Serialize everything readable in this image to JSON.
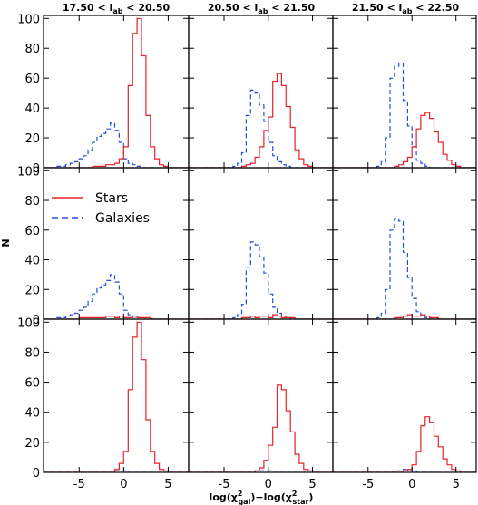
{
  "chart_data": {
    "type": "histogram-grid",
    "ylabel": "N",
    "xlabel_parts": [
      "log(χ",
      "2",
      "gal",
      ")−log(χ",
      "2",
      "star",
      ")"
    ],
    "xlim": [
      -9,
      7.3
    ],
    "ylim": [
      0,
      102
    ],
    "x_ticks": [
      -5,
      0,
      5
    ],
    "y_ticks": [
      0,
      20,
      40,
      60,
      80,
      100
    ],
    "bin_edges": [
      -9.0,
      -8.5,
      -8.0,
      -7.5,
      -7.0,
      -6.5,
      -6.0,
      -5.5,
      -5.0,
      -4.5,
      -4.0,
      -3.5,
      -3.0,
      -2.5,
      -2.0,
      -1.5,
      -1.0,
      -0.5,
      0.0,
      0.5,
      1.0,
      1.5,
      2.0,
      2.5,
      3.0,
      3.5,
      4.0,
      4.5,
      5.0,
      5.5,
      6.0,
      6.5,
      7.0,
      7.5
    ],
    "column_titles": [
      {
        "pre": "17.50 < i",
        "sub": "ab",
        "post": " < 20.50"
      },
      {
        "pre": "20.50 < i",
        "sub": "ab",
        "post": " < 21.50"
      },
      {
        "pre": "21.50 < i",
        "sub": "ab",
        "post": " < 22.50"
      }
    ],
    "legend": {
      "stars": "Stars",
      "galaxies": "Galaxies"
    },
    "colors": {
      "stars": "#e8202a",
      "galaxies": "#2450d8",
      "axis": "#000000"
    },
    "panels": [
      [
        {
          "stars": [
            0,
            0,
            0,
            0,
            0,
            0,
            0,
            0,
            0,
            0,
            0,
            1,
            1,
            1,
            2,
            2,
            3,
            6,
            14,
            55,
            90,
            100,
            75,
            35,
            14,
            6,
            2,
            1,
            0,
            0,
            0,
            0,
            0
          ],
          "galaxies": [
            0,
            0,
            0,
            1,
            1,
            2,
            3,
            4,
            6,
            8,
            12,
            17,
            21,
            23,
            26,
            30,
            25,
            17,
            6,
            3,
            2,
            1,
            0,
            0,
            0,
            0,
            0,
            0,
            0,
            0,
            0,
            0,
            0
          ]
        },
        {
          "stars": [
            0,
            0,
            0,
            0,
            0,
            0,
            0,
            0,
            0,
            0,
            0,
            0,
            1,
            2,
            3,
            7,
            14,
            25,
            34,
            58,
            63,
            55,
            41,
            27,
            12,
            6,
            2,
            1,
            0,
            0,
            0,
            0,
            0
          ],
          "galaxies": [
            0,
            0,
            0,
            0,
            0,
            0,
            0,
            0,
            0,
            0,
            1,
            3,
            10,
            35,
            52,
            50,
            42,
            31,
            17,
            8,
            4,
            2,
            1,
            0,
            0,
            0,
            0,
            0,
            0,
            0,
            0,
            0,
            0
          ]
        },
        {
          "stars": [
            0,
            0,
            0,
            0,
            0,
            0,
            0,
            0,
            0,
            0,
            0,
            0,
            0,
            0,
            1,
            2,
            4,
            7,
            14,
            26,
            35,
            37,
            33,
            24,
            17,
            9,
            5,
            2,
            1,
            0,
            0,
            0,
            0
          ],
          "galaxies": [
            0,
            0,
            0,
            0,
            0,
            0,
            0,
            0,
            0,
            0,
            1,
            4,
            20,
            60,
            68,
            70,
            45,
            28,
            14,
            5,
            3,
            1,
            0,
            0,
            0,
            0,
            0,
            0,
            0,
            0,
            0,
            0,
            0
          ]
        }
      ],
      [
        {
          "stars": [
            0,
            0,
            0,
            0,
            0,
            0,
            0,
            0,
            1,
            1,
            1,
            1,
            1,
            1,
            2,
            2,
            1,
            2,
            1,
            1,
            2,
            1,
            1,
            1,
            0,
            0,
            0,
            0,
            0,
            0,
            0,
            0,
            0
          ],
          "galaxies": [
            0,
            0,
            0,
            1,
            1,
            2,
            3,
            4,
            6,
            8,
            12,
            17,
            21,
            23,
            26,
            30,
            25,
            17,
            6,
            3,
            2,
            1,
            0,
            0,
            0,
            0,
            0,
            0,
            0,
            0,
            0,
            0,
            0
          ]
        },
        {
          "stars": [
            0,
            0,
            0,
            0,
            0,
            0,
            0,
            0,
            0,
            0,
            0,
            0,
            1,
            1,
            2,
            1,
            2,
            2,
            1,
            3,
            2,
            1,
            1,
            1,
            0,
            0,
            0,
            0,
            0,
            0,
            0,
            0,
            0
          ],
          "galaxies": [
            0,
            0,
            0,
            0,
            0,
            0,
            0,
            0,
            0,
            0,
            1,
            3,
            10,
            35,
            52,
            50,
            42,
            31,
            17,
            8,
            4,
            2,
            1,
            0,
            0,
            0,
            0,
            0,
            0,
            0,
            0,
            0,
            0
          ]
        },
        {
          "stars": [
            0,
            0,
            0,
            0,
            0,
            0,
            0,
            0,
            0,
            0,
            0,
            0,
            0,
            0,
            1,
            1,
            2,
            3,
            2,
            2,
            3,
            2,
            1,
            1,
            0,
            0,
            0,
            0,
            0,
            0,
            0,
            0,
            0
          ],
          "galaxies": [
            0,
            0,
            0,
            0,
            0,
            0,
            0,
            0,
            0,
            0,
            1,
            4,
            20,
            60,
            68,
            66,
            45,
            28,
            14,
            5,
            3,
            1,
            0,
            0,
            0,
            0,
            0,
            0,
            0,
            0,
            0,
            0,
            0
          ]
        }
      ],
      [
        {
          "stars": [
            0,
            0,
            0,
            0,
            0,
            0,
            0,
            0,
            0,
            0,
            0,
            0,
            0,
            0,
            0,
            0,
            2,
            6,
            14,
            55,
            90,
            100,
            75,
            35,
            14,
            6,
            2,
            1,
            0,
            0,
            0,
            0,
            0
          ],
          "galaxies": [
            0,
            0,
            0,
            0,
            0,
            0,
            0,
            0,
            0,
            0,
            0,
            0,
            0,
            0,
            0,
            0,
            1,
            1,
            1,
            0,
            0,
            0,
            0,
            0,
            0,
            0,
            0,
            0,
            0,
            0,
            0,
            0,
            0
          ]
        },
        {
          "stars": [
            0,
            0,
            0,
            0,
            0,
            0,
            0,
            0,
            0,
            0,
            0,
            0,
            0,
            0,
            0,
            1,
            3,
            8,
            18,
            30,
            58,
            55,
            41,
            27,
            12,
            6,
            2,
            1,
            0,
            0,
            0,
            0,
            0
          ],
          "galaxies": [
            0,
            0,
            0,
            0,
            0,
            0,
            0,
            0,
            0,
            0,
            0,
            0,
            0,
            0,
            0,
            1,
            1,
            1,
            1,
            0,
            0,
            0,
            0,
            0,
            0,
            0,
            0,
            0,
            0,
            0,
            0,
            0,
            0
          ]
        },
        {
          "stars": [
            0,
            0,
            0,
            0,
            0,
            0,
            0,
            0,
            0,
            0,
            0,
            0,
            0,
            0,
            0,
            0,
            1,
            2,
            5,
            14,
            31,
            37,
            33,
            24,
            17,
            9,
            5,
            2,
            1,
            0,
            0,
            0,
            0
          ],
          "galaxies": [
            0,
            0,
            0,
            0,
            0,
            0,
            0,
            0,
            0,
            0,
            0,
            0,
            0,
            0,
            1,
            1,
            2,
            1,
            1,
            0,
            0,
            0,
            0,
            0,
            0,
            0,
            0,
            0,
            0,
            0,
            0,
            0,
            0
          ]
        }
      ]
    ]
  }
}
